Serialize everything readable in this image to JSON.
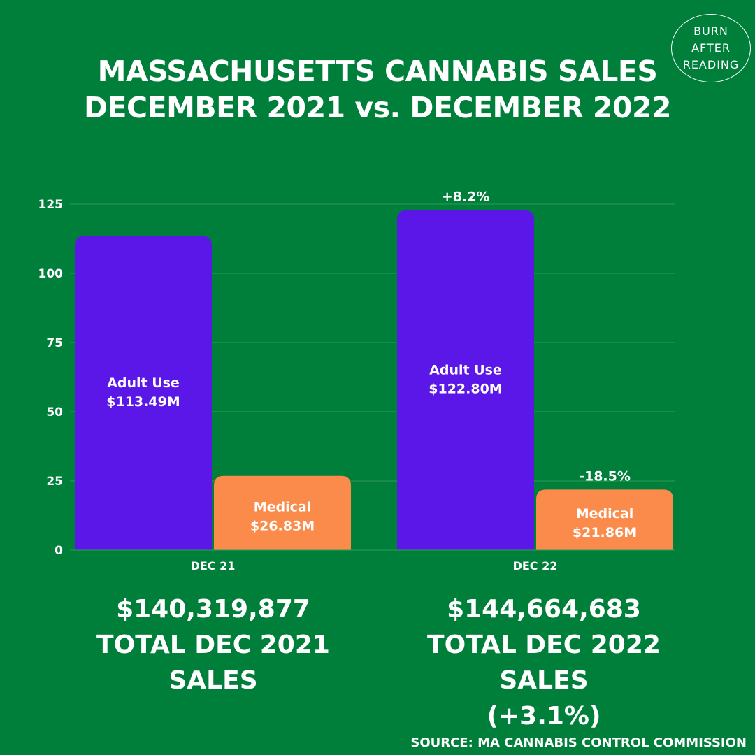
{
  "logo": {
    "line1": "BURN",
    "line2": "AFTER",
    "line3": "READING"
  },
  "title": {
    "line1": "MASSACHUSETTS CANNABIS SALES",
    "line2": "DECEMBER 2021 vs. DECEMBER 2022"
  },
  "colors": {
    "background": "#007f3b",
    "adult_use": "#5a17e8",
    "medical": "#fb8b4b",
    "text": "#ffffff"
  },
  "chart_data": {
    "type": "bar",
    "categories": [
      "DEC 21",
      "DEC 22"
    ],
    "series": [
      {
        "values": [
          113.49,
          122.8
        ],
        "labels": [
          "Adult Use\n$113.49M",
          "Adult Use\n$122.80M"
        ],
        "color": "#5a17e8"
      },
      {
        "values": [
          26.83,
          21.86
        ],
        "labels": [
          "Medical\n$26.83M",
          "Medical\n$21.86M"
        ],
        "color": "#fb8b4b"
      }
    ],
    "annotations": [
      {
        "category": "DEC 22",
        "series_index": 0,
        "text": "+8.2%"
      },
      {
        "category": "DEC 22",
        "series_index": 1,
        "text": "-18.5%"
      }
    ],
    "yticks": [
      0,
      25,
      50,
      75,
      100,
      125
    ],
    "ylim": [
      0,
      125
    ],
    "grid": true
  },
  "totals": [
    {
      "amount": "$140,319,877",
      "label": "TOTAL DEC 2021 SALES",
      "change": ""
    },
    {
      "amount": "$144,664,683",
      "label": "TOTAL DEC 2022 SALES",
      "change": "(+3.1%)"
    }
  ],
  "source": "SOURCE: MA CANNABIS CONTROL COMMISSION"
}
